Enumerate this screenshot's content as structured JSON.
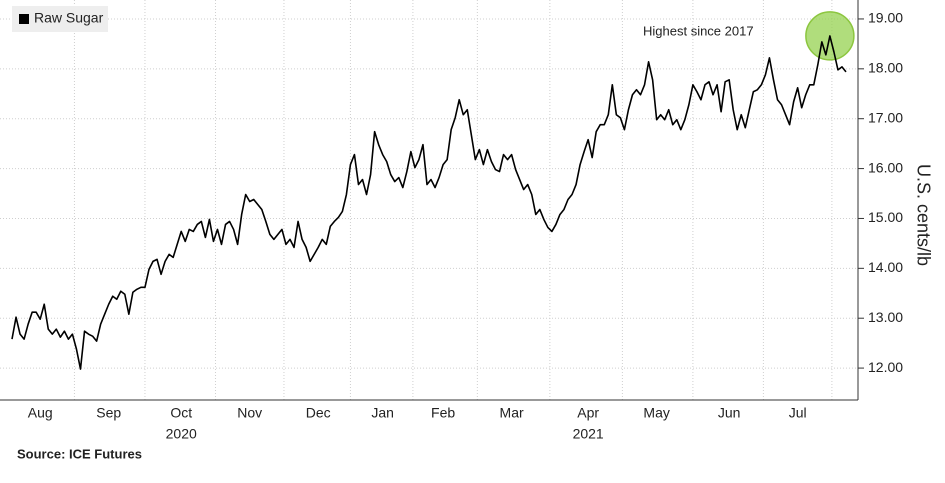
{
  "chart_data": {
    "type": "line",
    "legend": "top-left",
    "grid": true,
    "annotation": "Highest since 2017",
    "y_label": "U.S. cents/lb",
    "source": "Source: ICE Futures",
    "ylim": [
      11.36,
      19.38
    ],
    "yticks": [
      {
        "value": 12,
        "label": "12.00"
      },
      {
        "value": 13,
        "label": "13.00"
      },
      {
        "value": 14,
        "label": "14.00"
      },
      {
        "value": 15,
        "label": "15.00"
      },
      {
        "value": 16,
        "label": "16.00"
      },
      {
        "value": 17,
        "label": "17.00"
      },
      {
        "value": 18,
        "label": "18.00"
      },
      {
        "value": 19,
        "label": "19.00"
      }
    ],
    "categories": [
      null,
      null,
      null,
      null,
      null,
      null,
      null,
      "Aug",
      null,
      null,
      null,
      null,
      null,
      null,
      null,
      null,
      null,
      null,
      null,
      null,
      null,
      null,
      null,
      null,
      "Sep",
      null,
      null,
      null,
      null,
      null,
      null,
      null,
      null,
      null,
      null,
      null,
      null,
      null,
      null,
      null,
      null,
      null,
      "Oct",
      null,
      null,
      null,
      null,
      null,
      null,
      null,
      null,
      null,
      null,
      null,
      null,
      null,
      null,
      null,
      null,
      "Nov",
      null,
      null,
      null,
      null,
      null,
      null,
      null,
      null,
      null,
      null,
      null,
      null,
      null,
      null,
      null,
      null,
      "Dec",
      null,
      null,
      null,
      null,
      null,
      null,
      null,
      null,
      null,
      null,
      null,
      null,
      null,
      null,
      null,
      "Jan",
      null,
      null,
      null,
      null,
      null,
      null,
      null,
      null,
      null,
      null,
      null,
      null,
      null,
      null,
      "Feb",
      null,
      null,
      null,
      null,
      null,
      null,
      null,
      null,
      null,
      null,
      null,
      null,
      null,
      null,
      null,
      null,
      "Mar",
      null,
      null,
      null,
      null,
      null,
      null,
      null,
      null,
      null,
      null,
      null,
      null,
      null,
      null,
      null,
      null,
      null,
      null,
      "Apr",
      null,
      null,
      null,
      null,
      null,
      null,
      null,
      null,
      null,
      null,
      null,
      null,
      null,
      null,
      null,
      null,
      "May",
      null,
      null,
      null,
      null,
      null,
      null,
      null,
      null,
      null,
      null,
      null,
      null,
      null,
      null,
      null,
      null,
      null,
      "Jun",
      null,
      null,
      null,
      null,
      null,
      null,
      null,
      null,
      null,
      null,
      null,
      null,
      null,
      null,
      null,
      null,
      "Jul",
      null,
      null,
      null,
      null,
      null,
      null,
      null,
      null,
      null,
      null,
      null,
      null
    ],
    "year_labels": [
      null,
      null,
      null,
      null,
      null,
      null,
      null,
      null,
      null,
      null,
      null,
      null,
      null,
      null,
      null,
      null,
      null,
      null,
      null,
      null,
      null,
      null,
      null,
      null,
      null,
      null,
      null,
      null,
      null,
      null,
      null,
      null,
      null,
      null,
      null,
      null,
      null,
      null,
      null,
      null,
      null,
      null,
      "2020",
      null,
      null,
      null,
      null,
      null,
      null,
      null,
      null,
      null,
      null,
      null,
      null,
      null,
      null,
      null,
      null,
      null,
      null,
      null,
      null,
      null,
      null,
      null,
      null,
      null,
      null,
      null,
      null,
      null,
      null,
      null,
      null,
      null,
      null,
      null,
      null,
      null,
      null,
      null,
      null,
      null,
      null,
      null,
      null,
      null,
      null,
      null,
      null,
      null,
      null,
      null,
      null,
      null,
      null,
      null,
      null,
      null,
      null,
      null,
      null,
      null,
      null,
      null,
      null,
      null,
      null,
      null,
      null,
      null,
      null,
      null,
      null,
      null,
      null,
      null,
      null,
      null,
      null,
      null,
      null,
      null,
      null,
      null,
      null,
      null,
      null,
      null,
      null,
      null,
      null,
      null,
      null,
      null,
      null,
      null,
      null,
      null,
      null,
      null,
      null,
      "2021",
      null,
      null,
      null,
      null,
      null,
      null,
      null,
      null,
      null,
      null,
      null,
      null,
      null,
      null,
      null,
      null,
      null,
      null,
      null,
      null,
      null,
      null,
      null,
      null,
      null,
      null,
      null,
      null,
      null,
      null,
      null,
      null,
      null,
      null,
      null,
      null,
      null,
      null,
      null,
      null,
      null,
      null,
      null,
      null,
      null,
      null,
      null,
      null,
      null,
      null,
      null,
      null,
      null,
      null,
      null,
      null,
      null,
      null,
      null,
      null,
      null,
      null,
      null,
      null
    ],
    "series": [
      {
        "name": "Raw Sugar",
        "color": "#000000",
        "values": [
          12.58,
          13.02,
          12.68,
          12.58,
          12.88,
          13.12,
          13.12,
          12.98,
          13.28,
          12.78,
          12.68,
          12.78,
          12.62,
          12.74,
          12.58,
          12.68,
          12.38,
          11.98,
          12.74,
          12.68,
          12.64,
          12.54,
          12.88,
          13.08,
          13.28,
          13.44,
          13.38,
          13.54,
          13.48,
          13.08,
          13.52,
          13.58,
          13.62,
          13.62,
          13.98,
          14.14,
          14.18,
          13.88,
          14.14,
          14.28,
          14.22,
          14.48,
          14.74,
          14.54,
          14.78,
          14.74,
          14.88,
          14.94,
          14.62,
          14.98,
          14.54,
          14.78,
          14.48,
          14.88,
          14.94,
          14.78,
          14.48,
          15.08,
          15.48,
          15.34,
          15.38,
          15.28,
          15.18,
          14.94,
          14.68,
          14.58,
          14.68,
          14.78,
          14.48,
          14.58,
          14.42,
          14.94,
          14.58,
          14.42,
          14.14,
          14.28,
          14.42,
          14.58,
          14.48,
          14.84,
          14.94,
          15.02,
          15.14,
          15.48,
          16.08,
          16.28,
          15.68,
          15.78,
          15.48,
          15.88,
          16.74,
          16.48,
          16.28,
          16.14,
          15.88,
          15.74,
          15.82,
          15.62,
          15.94,
          16.34,
          16.02,
          16.18,
          16.48,
          15.68,
          15.78,
          15.62,
          15.82,
          16.08,
          16.18,
          16.78,
          17.02,
          17.38,
          17.08,
          17.18,
          16.68,
          16.18,
          16.38,
          16.08,
          16.38,
          16.14,
          15.98,
          15.94,
          16.28,
          16.18,
          16.28,
          15.98,
          15.78,
          15.58,
          15.68,
          15.48,
          15.08,
          15.18,
          14.98,
          14.82,
          14.74,
          14.88,
          15.08,
          15.18,
          15.38,
          15.48,
          15.68,
          16.08,
          16.34,
          16.58,
          16.22,
          16.74,
          16.88,
          16.88,
          17.08,
          17.68,
          17.08,
          17.02,
          16.78,
          17.18,
          17.48,
          17.58,
          17.48,
          17.68,
          18.14,
          17.78,
          16.98,
          17.08,
          16.98,
          17.18,
          16.88,
          16.98,
          16.78,
          16.98,
          17.28,
          17.68,
          17.54,
          17.38,
          17.68,
          17.74,
          17.48,
          17.68,
          17.14,
          17.74,
          17.78,
          17.18,
          16.78,
          17.08,
          16.82,
          17.18,
          17.54,
          17.58,
          17.68,
          17.88,
          18.22,
          17.78,
          17.38,
          17.28,
          17.08,
          16.88,
          17.34,
          17.62,
          17.22,
          17.48,
          17.68,
          17.68,
          18.08,
          18.54,
          18.28,
          18.66,
          18.34,
          17.98,
          18.04,
          17.94
        ]
      }
    ]
  }
}
